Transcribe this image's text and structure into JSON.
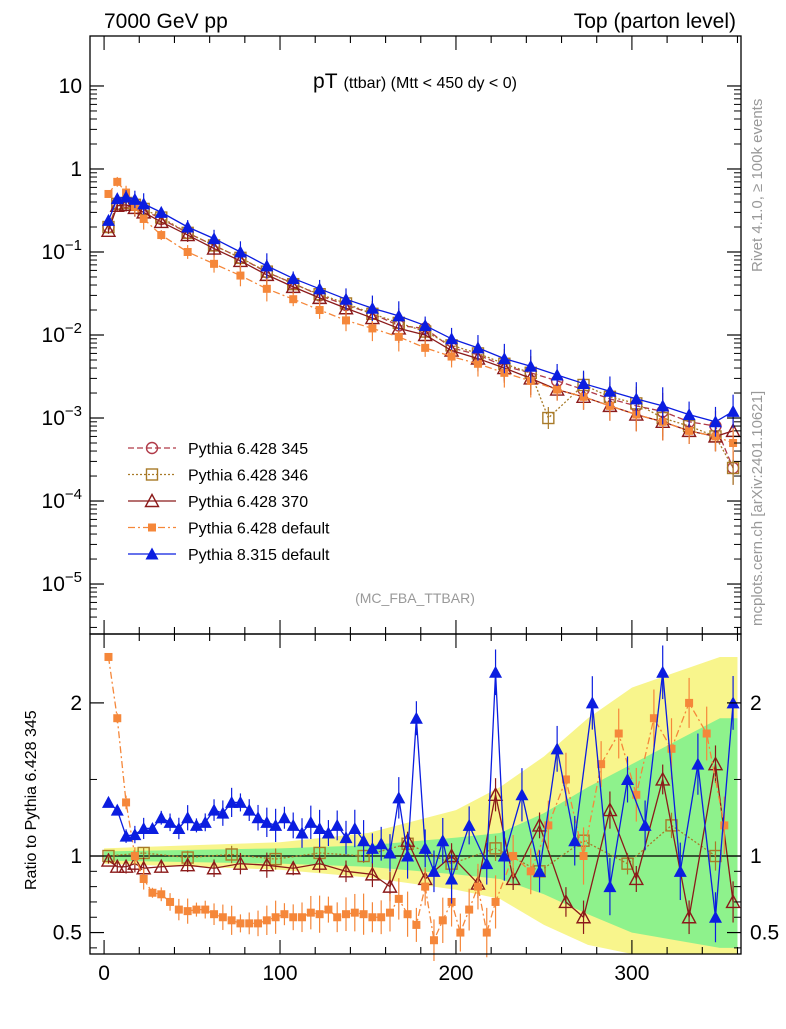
{
  "header": {
    "left_label": "7000 GeV pp",
    "right_label": "Top (parton level)"
  },
  "side_labels": {
    "rivet": "Rivet 4.1.0, ≥ 100k events",
    "mcplots": "mcplots.cern.ch [arXiv:2401.10621]"
  },
  "chart_data": [
    {
      "type": "line",
      "panel": "main",
      "title_main": "pT",
      "title_sub": "(ttbar) (Mtt < 450 dy < 0)",
      "watermark": "(MC_FBA_TTBAR)",
      "yscale": "log",
      "xlim": [
        -8,
        362
      ],
      "ylim": [
        2.5e-06,
        40
      ],
      "y_ticks": [
        {
          "value": 10,
          "base": "10",
          "exp": ""
        },
        {
          "value": 1,
          "base": "1",
          "exp": ""
        },
        {
          "value": 0.1,
          "base": "10",
          "exp": "−1"
        },
        {
          "value": 0.01,
          "base": "10",
          "exp": "−2"
        },
        {
          "value": 0.001,
          "base": "10",
          "exp": "−3"
        },
        {
          "value": 0.0001,
          "base": "10",
          "exp": "−4"
        },
        {
          "value": 1e-05,
          "base": "10",
          "exp": "−5"
        }
      ],
      "legend": {
        "position": "bottom-left",
        "entries": [
          {
            "label": "Pythia 6.428 345",
            "color": "#b03a48",
            "marker": "circle-open",
            "line": "dashed"
          },
          {
            "label": "Pythia 6.428 346",
            "color": "#a87a28",
            "marker": "square-open",
            "line": "dotted"
          },
          {
            "label": "Pythia 6.428 370",
            "color": "#8b1a1a",
            "marker": "triangle-open",
            "line": "solid"
          },
          {
            "label": "Pythia 6.428 default",
            "color": "#f5873a",
            "marker": "square-filled",
            "line": "dashdot"
          },
          {
            "label": "Pythia 8.315 default",
            "color": "#0b1de0",
            "marker": "triangle-filled",
            "line": "solid"
          }
        ]
      },
      "series": [
        {
          "name": "Pythia 6.428 345",
          "color": "#b03a48",
          "x": [
            2.5,
            7.5,
            12.5,
            17.5,
            22.5,
            32.5,
            47.5,
            62.5,
            77.5,
            92.5,
            107.5,
            122.5,
            137.5,
            152.5,
            167.5,
            182.5,
            197.5,
            212.5,
            227.5,
            242.5,
            257.5,
            272.5,
            287.5,
            302.5,
            317.5,
            332.5,
            347.5,
            357.5
          ],
          "y": [
            0.2,
            0.38,
            0.4,
            0.37,
            0.32,
            0.25,
            0.17,
            0.12,
            0.085,
            0.057,
            0.042,
            0.03,
            0.023,
            0.018,
            0.013,
            0.012,
            0.007,
            0.0058,
            0.0042,
            0.0035,
            0.0028,
            0.0022,
            0.0017,
            0.0014,
            0.0012,
            0.0009,
            0.0008,
            0.00025
          ]
        },
        {
          "name": "Pythia 6.428 346",
          "color": "#a87a28",
          "x": [
            2.5,
            7.5,
            12.5,
            17.5,
            22.5,
            32.5,
            47.5,
            62.5,
            77.5,
            92.5,
            107.5,
            122.5,
            137.5,
            152.5,
            167.5,
            182.5,
            197.5,
            212.5,
            227.5,
            242.5,
            252.5,
            272.5,
            287.5,
            302.5,
            317.5,
            332.5,
            347.5,
            357.5
          ],
          "y": [
            0.2,
            0.38,
            0.39,
            0.37,
            0.33,
            0.26,
            0.17,
            0.12,
            0.085,
            0.058,
            0.041,
            0.031,
            0.024,
            0.018,
            0.014,
            0.011,
            0.0075,
            0.006,
            0.0045,
            0.0035,
            0.001,
            0.0025,
            0.0018,
            0.0015,
            0.001,
            0.0008,
            0.0006,
            0.00025
          ]
        },
        {
          "name": "Pythia 6.428 370",
          "color": "#8b1a1a",
          "x": [
            2.5,
            7.5,
            12.5,
            17.5,
            22.5,
            32.5,
            47.5,
            62.5,
            77.5,
            92.5,
            107.5,
            122.5,
            137.5,
            152.5,
            167.5,
            182.5,
            197.5,
            212.5,
            227.5,
            242.5,
            257.5,
            272.5,
            287.5,
            302.5,
            317.5,
            332.5,
            347.5,
            357.5
          ],
          "y": [
            0.18,
            0.36,
            0.37,
            0.34,
            0.3,
            0.23,
            0.16,
            0.11,
            0.078,
            0.053,
            0.038,
            0.028,
            0.021,
            0.016,
            0.012,
            0.01,
            0.0065,
            0.0052,
            0.004,
            0.003,
            0.0022,
            0.0018,
            0.0014,
            0.0011,
            0.0009,
            0.0007,
            0.0006,
            0.0007
          ]
        },
        {
          "name": "Pythia 6.428 default",
          "color": "#f5873a",
          "x": [
            2.5,
            7.5,
            12.5,
            17.5,
            22.5,
            32.5,
            47.5,
            62.5,
            77.5,
            92.5,
            107.5,
            122.5,
            137.5,
            152.5,
            167.5,
            182.5,
            197.5,
            212.5,
            227.5,
            242.5,
            257.5,
            272.5,
            287.5,
            302.5,
            317.5,
            332.5,
            347.5,
            357.5
          ],
          "y": [
            0.5,
            0.7,
            0.52,
            0.35,
            0.25,
            0.16,
            0.1,
            0.072,
            0.052,
            0.036,
            0.027,
            0.02,
            0.015,
            0.012,
            0.0095,
            0.007,
            0.0055,
            0.0045,
            0.0035,
            0.0028,
            0.0022,
            0.0018,
            0.0014,
            0.0011,
            0.0009,
            0.0007,
            0.0006,
            0.0005
          ]
        },
        {
          "name": "Pythia 8.315 default",
          "color": "#0b1de0",
          "x": [
            2.5,
            7.5,
            12.5,
            17.5,
            22.5,
            32.5,
            47.5,
            62.5,
            77.5,
            92.5,
            107.5,
            122.5,
            137.5,
            152.5,
            167.5,
            182.5,
            197.5,
            212.5,
            227.5,
            242.5,
            257.5,
            272.5,
            287.5,
            302.5,
            317.5,
            332.5,
            347.5,
            357.5
          ],
          "y": [
            0.24,
            0.44,
            0.46,
            0.43,
            0.38,
            0.3,
            0.2,
            0.145,
            0.1,
            0.068,
            0.048,
            0.036,
            0.027,
            0.021,
            0.017,
            0.013,
            0.009,
            0.007,
            0.0052,
            0.0042,
            0.0033,
            0.0026,
            0.0021,
            0.0017,
            0.0014,
            0.0011,
            0.0009,
            0.0012
          ]
        }
      ]
    },
    {
      "type": "line",
      "panel": "ratio",
      "ylabel": "Ratio to Pythia 6.428 345",
      "xlim": [
        -8,
        362
      ],
      "ylim": [
        0.36,
        2.45
      ],
      "y_ticks": [
        {
          "value": 0.5,
          "label": "0.5"
        },
        {
          "value": 1,
          "label": "1"
        },
        {
          "value": 2,
          "label": "2"
        }
      ],
      "x_ticks": [
        {
          "value": 0,
          "label": "0"
        },
        {
          "value": 100,
          "label": "100"
        },
        {
          "value": 200,
          "label": "200"
        },
        {
          "value": 300,
          "label": "300"
        }
      ],
      "reference_line": 1,
      "band_yellow": {
        "x": [
          0,
          50,
          100,
          150,
          200,
          225,
          250,
          275,
          300,
          325,
          350,
          360
        ],
        "lo": [
          0.95,
          0.93,
          0.91,
          0.86,
          0.78,
          0.72,
          0.55,
          0.42,
          0.36,
          0.36,
          0.36,
          0.36
        ],
        "hi": [
          1.05,
          1.07,
          1.09,
          1.15,
          1.3,
          1.45,
          1.65,
          1.9,
          2.1,
          2.2,
          2.3,
          2.3
        ]
      },
      "band_green": {
        "x": [
          0,
          50,
          100,
          150,
          200,
          225,
          250,
          275,
          300,
          325,
          350,
          360
        ],
        "lo": [
          0.97,
          0.96,
          0.95,
          0.93,
          0.88,
          0.85,
          0.75,
          0.62,
          0.5,
          0.45,
          0.4,
          0.4
        ],
        "hi": [
          1.03,
          1.04,
          1.05,
          1.07,
          1.12,
          1.15,
          1.28,
          1.45,
          1.6,
          1.75,
          1.9,
          1.9
        ]
      },
      "series": [
        {
          "name": "Pythia 6.428 346",
          "color": "#a87a28",
          "x": [
            2.5,
            22.5,
            47.5,
            72.5,
            97.5,
            122.5,
            147.5,
            172.5,
            197.5,
            222.5,
            247.5,
            272.5,
            297.5,
            322.5,
            347.5
          ],
          "y": [
            1.0,
            1.02,
            0.99,
            1.01,
            0.98,
            1.02,
            1.0,
            1.08,
            0.95,
            1.05,
            0.9,
            1.1,
            0.95,
            1.2,
            1.0
          ]
        },
        {
          "name": "Pythia 6.428 370",
          "color": "#8b1a1a",
          "x": [
            2.5,
            7.5,
            12.5,
            17.5,
            22.5,
            32.5,
            47.5,
            62.5,
            77.5,
            92.5,
            107.5,
            122.5,
            137.5,
            152.5,
            162.5,
            172.5,
            182.5,
            197.5,
            212.5,
            222.5,
            232.5,
            247.5,
            262.5,
            272.5,
            287.5,
            302.5,
            317.5,
            332.5,
            347.5,
            357.5
          ],
          "y": [
            0.97,
            0.93,
            0.93,
            0.95,
            0.92,
            0.93,
            0.94,
            0.92,
            0.95,
            0.94,
            0.92,
            0.95,
            0.9,
            0.88,
            0.8,
            1.1,
            0.85,
            1.0,
            0.82,
            1.4,
            0.85,
            1.2,
            0.7,
            0.6,
            1.3,
            0.85,
            1.5,
            0.6,
            1.6,
            0.7
          ]
        },
        {
          "name": "Pythia 6.428 default",
          "color": "#f5873a",
          "x": [
            2.5,
            7.5,
            12.5,
            17.5,
            22.5,
            27.5,
            32.5,
            37.5,
            42.5,
            47.5,
            52.5,
            57.5,
            62.5,
            67.5,
            72.5,
            77.5,
            82.5,
            87.5,
            92.5,
            97.5,
            102.5,
            107.5,
            112.5,
            117.5,
            122.5,
            127.5,
            132.5,
            137.5,
            142.5,
            147.5,
            152.5,
            157.5,
            162.5,
            167.5,
            172.5,
            177.5,
            182.5,
            187.5,
            192.5,
            197.5,
            202.5,
            207.5,
            212.5,
            217.5,
            222.5,
            232.5,
            242.5,
            252.5,
            262.5,
            272.5,
            282.5,
            292.5,
            302.5,
            312.5,
            322.5,
            332.5,
            342.5,
            352.5
          ],
          "y": [
            2.3,
            1.9,
            1.35,
            1.0,
            0.85,
            0.76,
            0.75,
            0.7,
            0.65,
            0.64,
            0.65,
            0.65,
            0.62,
            0.6,
            0.58,
            0.56,
            0.56,
            0.56,
            0.58,
            0.6,
            0.62,
            0.6,
            0.6,
            0.63,
            0.62,
            0.65,
            0.6,
            0.62,
            0.63,
            0.62,
            0.6,
            0.6,
            0.63,
            0.72,
            0.62,
            0.55,
            0.8,
            0.45,
            0.58,
            0.7,
            0.5,
            0.65,
            0.8,
            0.5,
            0.7,
            1.0,
            0.9,
            1.2,
            1.5,
            1.0,
            1.6,
            1.8,
            1.4,
            1.9,
            1.7,
            2.0,
            1.8,
            1.2
          ]
        },
        {
          "name": "Pythia 8.315 default",
          "color": "#0b1de0",
          "x": [
            2.5,
            7.5,
            12.5,
            17.5,
            22.5,
            27.5,
            32.5,
            37.5,
            42.5,
            47.5,
            52.5,
            57.5,
            62.5,
            67.5,
            72.5,
            77.5,
            82.5,
            87.5,
            92.5,
            97.5,
            102.5,
            107.5,
            112.5,
            117.5,
            122.5,
            127.5,
            132.5,
            137.5,
            142.5,
            147.5,
            152.5,
            157.5,
            162.5,
            167.5,
            172.5,
            177.5,
            182.5,
            187.5,
            192.5,
            197.5,
            207.5,
            217.5,
            222.5,
            227.5,
            237.5,
            247.5,
            257.5,
            267.5,
            277.5,
            287.5,
            297.5,
            307.5,
            317.5,
            327.5,
            337.5,
            347.5,
            357.5
          ],
          "y": [
            1.35,
            1.3,
            1.13,
            1.14,
            1.18,
            1.18,
            1.25,
            1.22,
            1.18,
            1.25,
            1.2,
            1.22,
            1.3,
            1.28,
            1.35,
            1.35,
            1.3,
            1.25,
            1.22,
            1.2,
            1.25,
            1.2,
            1.15,
            1.22,
            1.18,
            1.15,
            1.2,
            1.12,
            1.18,
            1.1,
            1.05,
            1.08,
            1.02,
            1.38,
            1.0,
            1.9,
            1.05,
            0.9,
            1.1,
            0.85,
            1.2,
            0.95,
            2.2,
            1.0,
            1.4,
            0.9,
            1.7,
            1.1,
            2.0,
            0.8,
            1.5,
            1.2,
            2.2,
            0.9,
            1.6,
            0.6,
            2.0
          ]
        }
      ]
    }
  ]
}
